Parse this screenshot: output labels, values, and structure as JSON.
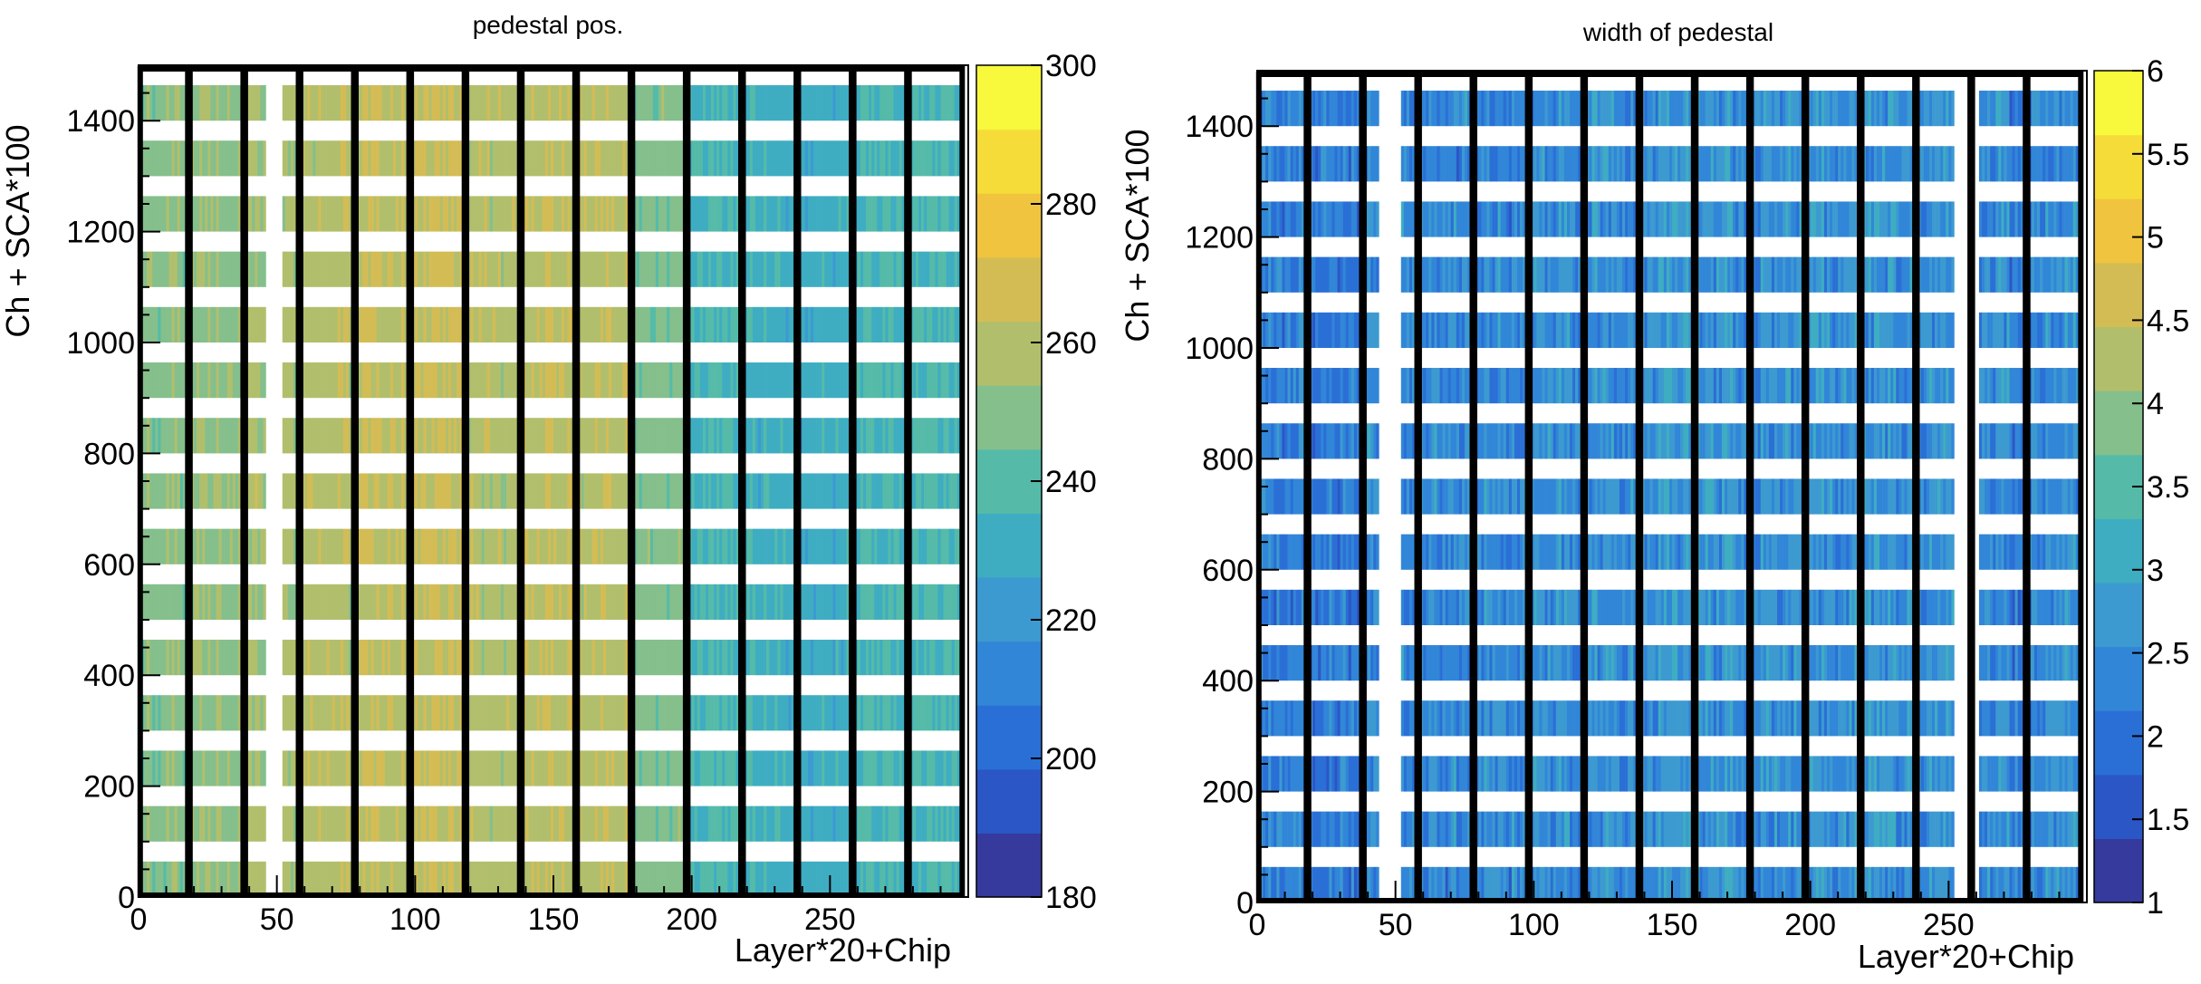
{
  "chart_data": [
    {
      "type": "heatmap",
      "title": "pedestal pos.",
      "xlabel": "Layer*20+Chip",
      "ylabel": "Ch + SCA*100",
      "xlim": [
        0,
        300
      ],
      "ylim": [
        0,
        1500
      ],
      "x_ticks": [
        "0",
        "50",
        "100",
        "150",
        "200",
        "250"
      ],
      "y_ticks": [
        "0",
        "200",
        "400",
        "600",
        "800",
        "1000",
        "1200",
        "1400"
      ],
      "zlim": [
        180,
        300
      ],
      "z_ticks": [
        "180",
        "200",
        "220",
        "240",
        "260",
        "280",
        "300"
      ],
      "layer_boundaries": [
        0,
        18,
        38,
        58,
        78,
        98,
        118,
        138,
        158,
        178,
        198,
        218,
        238,
        258,
        278,
        298
      ],
      "layer_mean_values": [
        250,
        252,
        256,
        260,
        262,
        264,
        258,
        262,
        260,
        248,
        236,
        232,
        230,
        236,
        236
      ],
      "sca_bands": [
        0,
        100,
        200,
        300,
        400,
        500,
        600,
        700,
        800,
        900,
        1000,
        1100,
        1200,
        1300,
        1400
      ],
      "band_height": 64,
      "empty_chip_columns": [
        46,
        47,
        48,
        49,
        50,
        51
      ]
    },
    {
      "type": "heatmap",
      "title": "width of pedestal",
      "xlabel": "Layer*20+Chip",
      "ylabel": "Ch + SCA*100",
      "xlim": [
        0,
        300
      ],
      "ylim": [
        0,
        1500
      ],
      "x_ticks": [
        "0",
        "50",
        "100",
        "150",
        "200",
        "250"
      ],
      "y_ticks": [
        "0",
        "200",
        "400",
        "600",
        "800",
        "1000",
        "1200",
        "1400"
      ],
      "zlim": [
        1,
        6
      ],
      "z_ticks": [
        "1",
        "1.5",
        "2",
        "2.5",
        "3",
        "3.5",
        "4",
        "4.5",
        "5",
        "5.5",
        "6"
      ],
      "layer_boundaries": [
        0,
        18,
        38,
        58,
        78,
        98,
        118,
        138,
        158,
        178,
        198,
        218,
        238,
        258,
        278,
        298
      ],
      "layer_mean_values": [
        2.2,
        2.2,
        2.3,
        2.4,
        2.4,
        2.5,
        2.5,
        2.6,
        2.6,
        2.5,
        2.5,
        2.5,
        2.5,
        2.4,
        2.4
      ],
      "sca_bands": [
        0,
        100,
        200,
        300,
        400,
        500,
        600,
        700,
        800,
        900,
        1000,
        1100,
        1200,
        1300,
        1400
      ],
      "band_height": 64,
      "empty_chip_columns": [
        44,
        45,
        46,
        47,
        48,
        49,
        50,
        51,
        252,
        253,
        254,
        255,
        256,
        257,
        258,
        259,
        260
      ]
    }
  ],
  "palette": [
    "#353a9c",
    "#2b56c6",
    "#2a6fd6",
    "#3186d8",
    "#3c9ad0",
    "#3eadc2",
    "#55bba8",
    "#84bf8c",
    "#b1bf6c",
    "#d4bc55",
    "#f0c43e",
    "#f6dc38",
    "#f8f83c"
  ]
}
